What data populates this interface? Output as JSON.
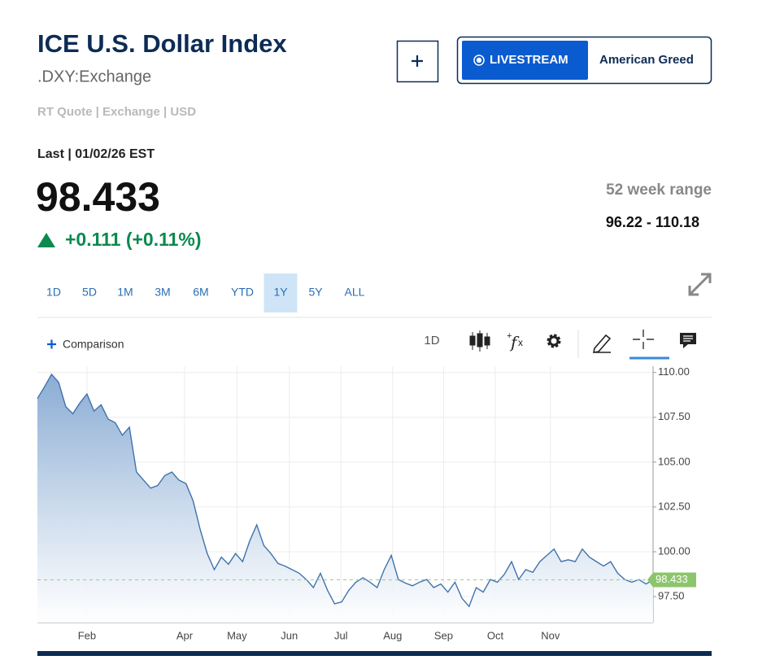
{
  "header": {
    "title": "ICE U.S. Dollar Index",
    "symbol": ".DXY:Exchange"
  },
  "buttons": {
    "livestream": "LIVESTREAM",
    "show": "American Greed"
  },
  "quote": {
    "source": "RT Quote | Exchange | USD",
    "last_label": "Last | 01/02/26 EST",
    "price": "98.433",
    "change": "+0.111 (+0.11%)",
    "range_label": "52 week range",
    "range": "96.22 - 110.18"
  },
  "ranges": [
    "1D",
    "5D",
    "1M",
    "3M",
    "6M",
    "YTD",
    "1Y",
    "5Y",
    "ALL"
  ],
  "selected_range": "1Y",
  "toolbar": {
    "comparison": "Comparison",
    "interval": "1D"
  },
  "chart_data": {
    "type": "area",
    "color": "#3f73ab",
    "grid": true,
    "values": [
      108.55,
      109.2,
      109.9,
      109.45,
      108.1,
      107.7,
      108.3,
      108.8,
      107.85,
      108.2,
      107.4,
      107.2,
      106.5,
      106.95,
      104.45,
      104.0,
      103.55,
      103.7,
      104.25,
      104.45,
      104.0,
      103.8,
      102.85,
      101.25,
      99.9,
      99.0,
      99.7,
      99.3,
      99.9,
      99.45,
      100.6,
      101.5,
      100.35,
      99.9,
      99.35,
      99.2,
      99.0,
      98.8,
      98.45,
      98.0,
      98.8,
      97.85,
      97.1,
      97.2,
      97.85,
      98.3,
      98.55,
      98.3,
      98.0,
      99.0,
      99.8,
      98.45,
      98.25,
      98.1,
      98.3,
      98.45,
      98.0,
      98.2,
      97.75,
      98.3,
      97.4,
      96.95,
      98.0,
      97.75,
      98.45,
      98.3,
      98.75,
      99.45,
      98.45,
      99.0,
      98.85,
      99.45,
      99.8,
      100.15,
      99.45,
      99.55,
      99.45,
      100.15,
      99.7,
      99.45,
      99.2,
      99.45,
      98.8,
      98.45,
      98.3,
      98.45,
      98.2,
      98.433
    ],
    "xlim": [
      0,
      87
    ],
    "xticks": [
      {
        "value": 7.0,
        "label": "Feb"
      },
      {
        "value": 20.8,
        "label": "Apr"
      },
      {
        "value": 28.2,
        "label": "May"
      },
      {
        "value": 35.6,
        "label": "Jun"
      },
      {
        "value": 42.9,
        "label": "Jul"
      },
      {
        "value": 50.2,
        "label": "Aug"
      },
      {
        "value": 57.4,
        "label": "Sep"
      },
      {
        "value": 64.7,
        "label": "Oct"
      },
      {
        "value": 72.5,
        "label": "Nov"
      }
    ],
    "ylim": [
      96.05,
      110.35
    ],
    "yticks": [
      {
        "value": 97.5,
        "label": "97.50"
      },
      {
        "value": 100,
        "label": "100.00"
      },
      {
        "value": 102.5,
        "label": "102.50"
      },
      {
        "value": 105,
        "label": "105.00"
      },
      {
        "value": 107.5,
        "label": "107.50"
      },
      {
        "value": 110,
        "label": "110.00"
      }
    ]
  }
}
